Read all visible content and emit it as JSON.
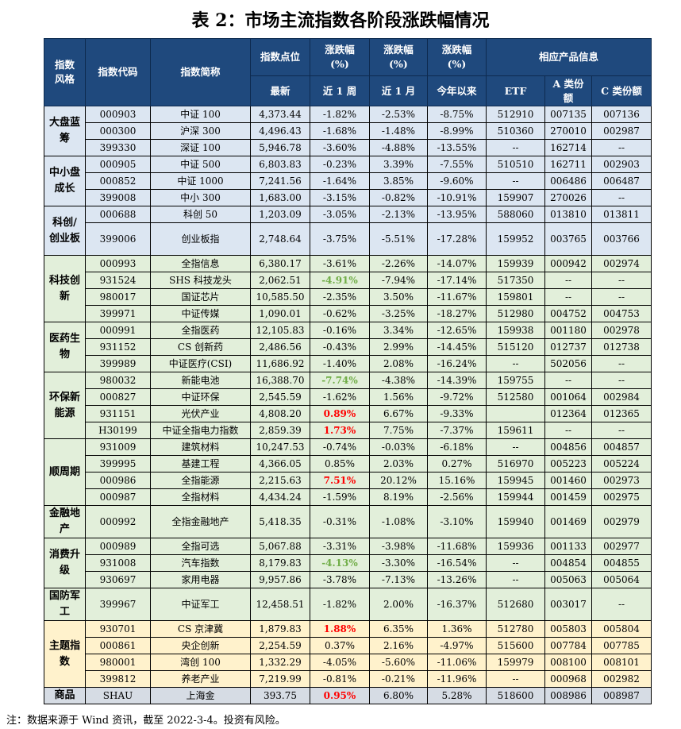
{
  "title": "表 2：市场主流指数各阶段涨跌幅情况",
  "header": {
    "style": "指数风格",
    "code": "指数代码",
    "name": "指数简称",
    "level": "指数点位",
    "chg1": "涨跌幅(%)",
    "chg2": "涨跌幅(%)",
    "chg3": "涨跌幅(%)",
    "products": "相应产品信息",
    "latest": "最新",
    "week": "近 1 周",
    "month": "近 1 月",
    "ytd": "今年以来",
    "etf": "ETF",
    "a_share": "A 类份额",
    "c_share": "C 类份额"
  },
  "colors": {
    "header": "#1f497d",
    "green_text": "#70ad47",
    "red_text": "#ff0000"
  },
  "groups": [
    {
      "label": "大盘蓝筹",
      "theme": "blue",
      "rows": [
        {
          "code": "000903",
          "name": "中证 100",
          "level": "4,373.44",
          "week": "-1.82%",
          "month": "-2.53%",
          "ytd": "-8.75%",
          "etf": "512910",
          "a": "007135",
          "c": "007136"
        },
        {
          "code": "000300",
          "name": "沪深 300",
          "level": "4,496.43",
          "week": "-1.68%",
          "month": "-1.48%",
          "ytd": "-8.99%",
          "etf": "510360",
          "a": "270010",
          "c": "002987"
        },
        {
          "code": "399330",
          "name": "深证 100",
          "level": "5,946.78",
          "week": "-3.60%",
          "month": "-4.88%",
          "ytd": "-13.55%",
          "etf": "--",
          "a": "162714",
          "c": "--"
        }
      ]
    },
    {
      "label": "中小盘成长",
      "theme": "blue",
      "rows": [
        {
          "code": "000905",
          "name": "中证 500",
          "level": "6,803.83",
          "week": "-0.23%",
          "month": "3.39%",
          "ytd": "-7.55%",
          "etf": "510510",
          "a": "162711",
          "c": "002903"
        },
        {
          "code": "000852",
          "name": "中证 1000",
          "level": "7,241.56",
          "week": "-1.64%",
          "month": "3.85%",
          "ytd": "-9.60%",
          "etf": "--",
          "a": "006486",
          "c": "006487"
        },
        {
          "code": "399008",
          "name": "中小 300",
          "level": "1,683.00",
          "week": "-3.15%",
          "month": "-0.82%",
          "ytd": "-10.91%",
          "etf": "159907",
          "a": "270026",
          "c": "--"
        }
      ]
    },
    {
      "label": "科创/创业板",
      "theme": "blue",
      "rows": [
        {
          "code": "000688",
          "name": "科创 50",
          "level": "1,203.09",
          "week": "-3.05%",
          "month": "-2.13%",
          "ytd": "-13.95%",
          "etf": "588060",
          "a": "013810",
          "c": "013811"
        },
        {
          "code": "399006",
          "name": "创业板指",
          "level": "2,748.64",
          "week": "-3.75%",
          "month": "-5.51%",
          "ytd": "-17.28%",
          "etf": "159952",
          "a": "003765",
          "c": "003766",
          "tall": true
        }
      ]
    },
    {
      "label": "科技创新",
      "theme": "green",
      "rows": [
        {
          "code": "000993",
          "name": "全指信息",
          "level": "6,380.17",
          "week": "-3.61%",
          "month": "-2.26%",
          "ytd": "-14.07%",
          "etf": "159939",
          "a": "000942",
          "c": "002974"
        },
        {
          "code": "931524",
          "name": "SHS 科技龙头",
          "level": "2,062.51",
          "week": "-4.91%",
          "week_hl": "green",
          "month": "-7.94%",
          "ytd": "-17.14%",
          "etf": "517350",
          "a": "--",
          "c": "--"
        },
        {
          "code": "980017",
          "name": "国证芯片",
          "level": "10,585.50",
          "week": "-2.35%",
          "month": "3.50%",
          "ytd": "-11.67%",
          "etf": "159801",
          "a": "--",
          "c": "--"
        },
        {
          "code": "399971",
          "name": "中证传媒",
          "level": "1,090.01",
          "week": "-0.62%",
          "month": "-3.25%",
          "ytd": "-18.27%",
          "etf": "512980",
          "a": "004752",
          "c": "004753"
        }
      ]
    },
    {
      "label": "医药生物",
      "theme": "green",
      "rows": [
        {
          "code": "000991",
          "name": "全指医药",
          "level": "12,105.83",
          "week": "-0.16%",
          "month": "3.34%",
          "ytd": "-12.65%",
          "etf": "159938",
          "a": "001180",
          "c": "002978"
        },
        {
          "code": "931152",
          "name": "CS 创新药",
          "level": "2,486.56",
          "week": "-0.43%",
          "month": "2.99%",
          "ytd": "-14.45%",
          "etf": "515120",
          "a": "012737",
          "c": "012738"
        },
        {
          "code": "399989",
          "name": "中证医疗(CSI)",
          "level": "11,686.92",
          "week": "-1.40%",
          "month": "2.08%",
          "ytd": "-16.24%",
          "etf": "--",
          "a": "502056",
          "c": "--"
        }
      ]
    },
    {
      "label": "环保新能源",
      "theme": "green",
      "rows": [
        {
          "code": "980032",
          "name": "新能电池",
          "level": "16,388.70",
          "week": "-7.74%",
          "week_hl": "green",
          "month": "-4.38%",
          "ytd": "-14.39%",
          "etf": "159755",
          "a": "--",
          "c": "--"
        },
        {
          "code": "000827",
          "name": "中证环保",
          "level": "2,545.59",
          "week": "-1.62%",
          "month": "1.56%",
          "ytd": "-9.72%",
          "etf": "512580",
          "a": "001064",
          "c": "002984"
        },
        {
          "code": "931151",
          "name": "光伏产业",
          "level": "4,808.20",
          "week": "0.89%",
          "week_hl": "red",
          "month": "6.67%",
          "ytd": "-9.33%",
          "etf": "",
          "a": "012364",
          "c": "012365"
        },
        {
          "code": "H30199",
          "name": "中证全指电力指数",
          "level": "2,859.39",
          "week": "1.73%",
          "week_hl": "red",
          "month": "7.75%",
          "ytd": "-7.37%",
          "etf": "159611",
          "a": "--",
          "c": "--"
        }
      ]
    },
    {
      "label": "顺周期",
      "theme": "green",
      "rows": [
        {
          "code": "931009",
          "name": "建筑材料",
          "level": "10,247.53",
          "week": "-0.74%",
          "month": "-0.03%",
          "ytd": "-6.18%",
          "etf": "--",
          "a": "004856",
          "c": "004857"
        },
        {
          "code": "399995",
          "name": "基建工程",
          "level": "4,366.05",
          "week": "0.85%",
          "month": "2.03%",
          "ytd": "0.27%",
          "etf": "516970",
          "a": "005223",
          "c": "005224"
        },
        {
          "code": "000986",
          "name": "全指能源",
          "level": "2,215.63",
          "week": "7.51%",
          "week_hl": "red",
          "month": "20.12%",
          "ytd": "15.16%",
          "etf": "159945",
          "a": "001460",
          "c": "002973"
        },
        {
          "code": "000987",
          "name": "全指材料",
          "level": "4,434.24",
          "week": "-1.59%",
          "month": "8.19%",
          "ytd": "-2.56%",
          "etf": "159944",
          "a": "001459",
          "c": "002975"
        }
      ]
    },
    {
      "label": "金融地产",
      "theme": "green",
      "rows": [
        {
          "code": "000992",
          "name": "全指金融地产",
          "level": "5,418.35",
          "week": "-0.31%",
          "month": "-1.08%",
          "ytd": "-3.10%",
          "etf": "159940",
          "a": "001469",
          "c": "002979",
          "tall": true
        }
      ]
    },
    {
      "label": "消费升级",
      "theme": "green",
      "rows": [
        {
          "code": "000989",
          "name": "全指可选",
          "level": "5,067.88",
          "week": "-3.31%",
          "month": "-3.98%",
          "ytd": "-11.68%",
          "etf": "159936",
          "a": "001133",
          "c": "002977"
        },
        {
          "code": "931008",
          "name": "汽车指数",
          "level": "8,179.83",
          "week": "-4.13%",
          "week_hl": "green",
          "month": "-3.30%",
          "ytd": "-16.54%",
          "etf": "--",
          "a": "004854",
          "c": "004855"
        },
        {
          "code": "930697",
          "name": "家用电器",
          "level": "9,957.86",
          "week": "-3.78%",
          "month": "-7.13%",
          "ytd": "-13.26%",
          "etf": "--",
          "a": "005063",
          "c": "005064"
        }
      ]
    },
    {
      "label": "国防军工",
      "theme": "green",
      "rows": [
        {
          "code": "399967",
          "name": "中证军工",
          "level": "12,458.51",
          "week": "-1.82%",
          "month": "2.00%",
          "ytd": "-16.37%",
          "etf": "512680",
          "a": "003017",
          "c": "--",
          "tall": true
        }
      ]
    },
    {
      "label": "主题指数",
      "theme": "yellow",
      "rows": [
        {
          "code": "930701",
          "name": "CS 京津冀",
          "level": "1,879.83",
          "week": "1.88%",
          "week_hl": "red",
          "month": "6.35%",
          "ytd": "1.36%",
          "etf": "512780",
          "a": "005803",
          "c": "005804"
        },
        {
          "code": "000861",
          "name": "央企创新",
          "level": "2,254.59",
          "week": "0.37%",
          "month": "2.16%",
          "ytd": "-4.97%",
          "etf": "515600",
          "a": "007784",
          "c": "007785"
        },
        {
          "code": "980001",
          "name": "湾创 100",
          "level": "1,332.29",
          "week": "-4.05%",
          "month": "-5.60%",
          "ytd": "-11.06%",
          "etf": "159979",
          "a": "008100",
          "c": "008101"
        },
        {
          "code": "399812",
          "name": "养老产业",
          "level": "7,219.99",
          "week": "-0.81%",
          "month": "-0.21%",
          "ytd": "-11.96%",
          "etf": "--",
          "a": "000968",
          "c": "002982"
        }
      ]
    },
    {
      "label": "商品",
      "theme": "grey",
      "rows": [
        {
          "code": "SHAU",
          "name": "上海金",
          "level": "393.75",
          "week": "0.95%",
          "week_hl": "red",
          "month": "6.80%",
          "ytd": "5.28%",
          "etf": "518600",
          "a": "008986",
          "c": "008987"
        }
      ]
    }
  ],
  "note": "注：数据来源于 Wind 资讯，截至 2022-3-4。投资有风险。"
}
